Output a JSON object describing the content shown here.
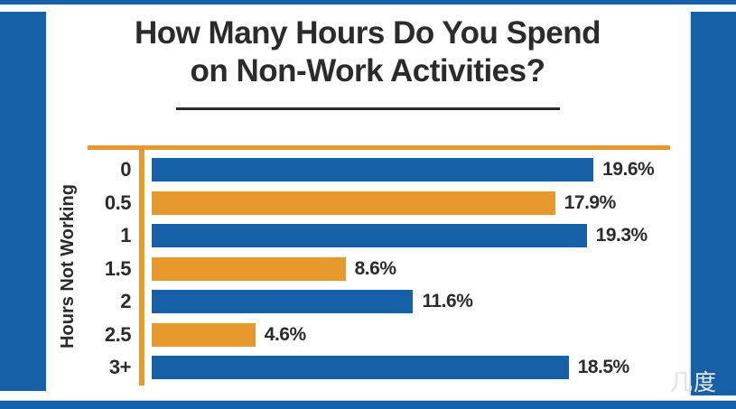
{
  "title": {
    "line1": "How Many Hours Do You Spend",
    "line2": "on Non-Work Activities?"
  },
  "watermark": {
    "text": "几度"
  },
  "colors": {
    "frame_blue": "#1660a8",
    "bar_blue": "#1660a8",
    "bar_orange": "#e8992d",
    "axis_orange": "#e8992d",
    "text_dark": "#2b2b2b"
  },
  "chart_data": {
    "type": "bar",
    "orientation": "horizontal",
    "title": "How Many Hours Do You Spend on Non-Work Activities?",
    "ylabel": "Hours Not Working",
    "xlabel": "",
    "categories": [
      "0",
      "0.5",
      "1",
      "1.5",
      "2",
      "2.5",
      "3+"
    ],
    "values": [
      19.6,
      17.9,
      19.3,
      8.6,
      11.6,
      4.6,
      18.5
    ],
    "value_labels": [
      "19.6%",
      "17.9%",
      "19.3%",
      "8.6%",
      "11.6%",
      "4.6%",
      "18.5%"
    ],
    "bar_colors": [
      "#1660a8",
      "#e8992d",
      "#1660a8",
      "#e8992d",
      "#1660a8",
      "#e8992d",
      "#1660a8"
    ],
    "xlim": [
      0,
      23
    ],
    "grid": false,
    "legend": false
  }
}
